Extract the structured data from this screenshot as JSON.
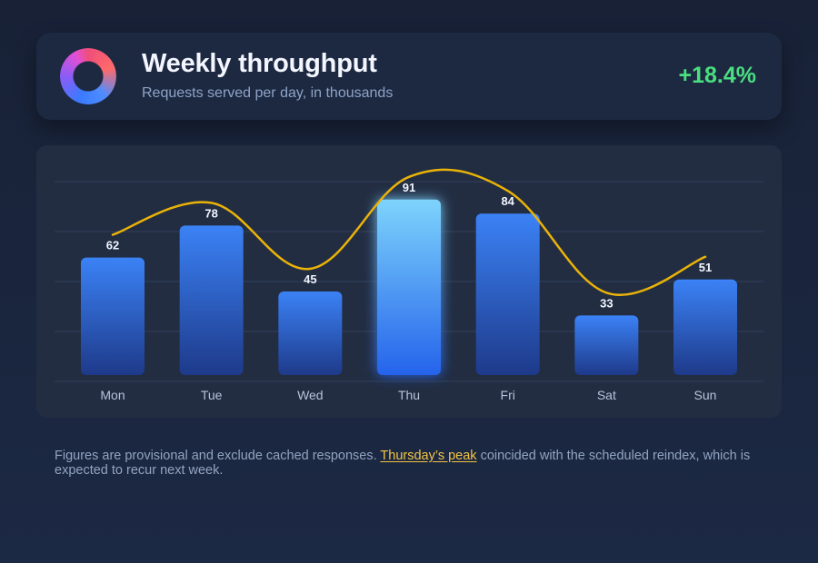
{
  "header": {
    "icon": "donut-ring-icon",
    "title": "Weekly throughput",
    "subtitle": "Requests served per day, in thousands",
    "delta": "+18.4%"
  },
  "chart_data": {
    "type": "bar",
    "categories": [
      "Mon",
      "Tue",
      "Wed",
      "Thu",
      "Fri",
      "Sat",
      "Sun"
    ],
    "values": [
      62,
      78,
      45,
      91,
      84,
      33,
      51
    ],
    "highlight_index": 3,
    "trend_line": true,
    "ylim": [
      0,
      100
    ],
    "grid": true,
    "colors": {
      "bar_top": "#3b82f6",
      "bar_bottom": "#1e3a8a",
      "highlight_top": "#7dd3fc",
      "highlight_bottom": "#2563eb",
      "line": "#eab308",
      "label": "#f1f5ff",
      "tick": "#b7c3da",
      "grid": "#334059"
    }
  },
  "footnote": {
    "before": "Figures are provisional and exclude cached responses. ",
    "highlight": "Thursday’s peak",
    "after": " coincided with the scheduled reindex, which is expected to recur next week."
  }
}
